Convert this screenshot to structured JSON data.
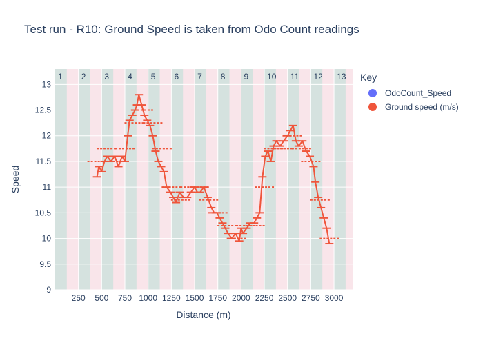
{
  "chart_data": {
    "type": "line",
    "title": "Test run - R10: Ground Speed is taken from Odo Count readings",
    "xlabel": "Distance (m)",
    "ylabel": "Speed",
    "xlim": [
      0,
      3200
    ],
    "ylim": [
      9,
      13.3
    ],
    "x_ticks": [
      250,
      500,
      750,
      1000,
      1250,
      1500,
      1750,
      2000,
      2250,
      2500,
      2750,
      3000
    ],
    "x_tick_labels": [
      "250",
      "500",
      "750",
      "1000",
      "1250",
      "1500",
      "1750",
      "2000",
      "2250",
      "2500",
      "2750",
      "3000"
    ],
    "y_ticks": [
      9,
      9.5,
      10,
      10.5,
      11,
      11.5,
      12,
      12.5,
      13
    ],
    "y_tick_labels": [
      "9",
      "9.5",
      "10",
      "10.5",
      "11",
      "11.5",
      "12",
      "12.5",
      "13"
    ],
    "legend": {
      "title": "Key",
      "position": "right"
    },
    "lap_labels": [
      "1",
      "2",
      "3",
      "4",
      "5",
      "6",
      "7",
      "8",
      "9",
      "10",
      "11",
      "12",
      "13"
    ],
    "lap_label_x": [
      60,
      310,
      560,
      810,
      1060,
      1310,
      1560,
      1810,
      2060,
      2310,
      2560,
      2810,
      3060
    ],
    "bands": [
      {
        "x0": 0,
        "x1": 125,
        "kind": "green"
      },
      {
        "x0": 125,
        "x1": 250,
        "kind": "pink"
      },
      {
        "x0": 250,
        "x1": 375,
        "kind": "green"
      },
      {
        "x0": 375,
        "x1": 500,
        "kind": "pink"
      },
      {
        "x0": 500,
        "x1": 625,
        "kind": "green"
      },
      {
        "x0": 625,
        "x1": 750,
        "kind": "pink"
      },
      {
        "x0": 750,
        "x1": 875,
        "kind": "green"
      },
      {
        "x0": 875,
        "x1": 1000,
        "kind": "pink"
      },
      {
        "x0": 1000,
        "x1": 1125,
        "kind": "green"
      },
      {
        "x0": 1125,
        "x1": 1250,
        "kind": "pink"
      },
      {
        "x0": 1250,
        "x1": 1375,
        "kind": "green"
      },
      {
        "x0": 1375,
        "x1": 1500,
        "kind": "pink"
      },
      {
        "x0": 1500,
        "x1": 1625,
        "kind": "green"
      },
      {
        "x0": 1625,
        "x1": 1750,
        "kind": "pink"
      },
      {
        "x0": 1750,
        "x1": 1875,
        "kind": "green"
      },
      {
        "x0": 1875,
        "x1": 2000,
        "kind": "pink"
      },
      {
        "x0": 2000,
        "x1": 2125,
        "kind": "green"
      },
      {
        "x0": 2125,
        "x1": 2250,
        "kind": "pink"
      },
      {
        "x0": 2250,
        "x1": 2375,
        "kind": "green"
      },
      {
        "x0": 2375,
        "x1": 2500,
        "kind": "pink"
      },
      {
        "x0": 2500,
        "x1": 2625,
        "kind": "green"
      },
      {
        "x0": 2625,
        "x1": 2750,
        "kind": "pink"
      },
      {
        "x0": 2750,
        "x1": 2875,
        "kind": "green"
      },
      {
        "x0": 2875,
        "x1": 3000,
        "kind": "pink"
      },
      {
        "x0": 3000,
        "x1": 3125,
        "kind": "green"
      },
      {
        "x0": 3125,
        "x1": 3200,
        "kind": "pink"
      }
    ],
    "series": [
      {
        "name": "OdoCount_Speed",
        "color": "#636efa",
        "style": "markers",
        "x": [
          450,
          550,
          650,
          750,
          850,
          950,
          1050,
          1150,
          1250,
          1350,
          1450,
          1550,
          1650,
          1750,
          1850,
          1950,
          2050,
          2150,
          2250,
          2350,
          2450,
          2550,
          2650,
          2750,
          2850,
          2950
        ],
        "y": [
          11.5,
          11.75,
          11.5,
          11.75,
          12.25,
          12.5,
          12.25,
          11.75,
          11.0,
          10.75,
          11.0,
          11.0,
          10.75,
          10.5,
          10.25,
          10.0,
          10.25,
          10.25,
          11.0,
          11.75,
          11.75,
          12.0,
          11.75,
          11.5,
          10.75,
          10.0
        ]
      },
      {
        "name": "Ground speed (m/s)",
        "color": "#ef553b",
        "style": "lines",
        "x": [
          450,
          470,
          500,
          530,
          560,
          600,
          640,
          680,
          720,
          750,
          780,
          800,
          830,
          860,
          880,
          900,
          930,
          960,
          990,
          1020,
          1050,
          1080,
          1110,
          1140,
          1170,
          1200,
          1240,
          1270,
          1300,
          1340,
          1380,
          1420,
          1460,
          1500,
          1530,
          1560,
          1600,
          1640,
          1680,
          1710,
          1740,
          1770,
          1800,
          1830,
          1860,
          1900,
          1940,
          1980,
          2000,
          2020,
          2060,
          2100,
          2140,
          2170,
          2200,
          2230,
          2260,
          2290,
          2320,
          2350,
          2380,
          2420,
          2460,
          2500,
          2530,
          2560,
          2590,
          2620,
          2660,
          2700,
          2740,
          2780,
          2800,
          2830,
          2860,
          2890,
          2920,
          2950
        ],
        "y": [
          11.2,
          11.4,
          11.3,
          11.5,
          11.6,
          11.5,
          11.6,
          11.4,
          11.6,
          11.5,
          12.0,
          12.3,
          12.4,
          12.5,
          12.6,
          12.8,
          12.6,
          12.4,
          12.3,
          12.2,
          12.0,
          11.7,
          11.5,
          11.4,
          11.3,
          11.0,
          10.9,
          10.8,
          10.7,
          10.9,
          10.8,
          10.8,
          10.9,
          11.0,
          10.9,
          10.9,
          11.0,
          10.8,
          10.6,
          10.5,
          10.5,
          10.4,
          10.3,
          10.2,
          10.1,
          10.0,
          10.1,
          9.95,
          10.2,
          10.1,
          10.2,
          10.3,
          10.3,
          10.4,
          10.5,
          11.2,
          11.6,
          11.7,
          11.5,
          11.8,
          11.9,
          11.8,
          11.9,
          12.0,
          12.1,
          12.2,
          11.9,
          11.8,
          11.9,
          11.7,
          11.6,
          11.4,
          11.1,
          10.8,
          10.6,
          10.4,
          10.2,
          9.9
        ]
      }
    ],
    "grid": true
  }
}
